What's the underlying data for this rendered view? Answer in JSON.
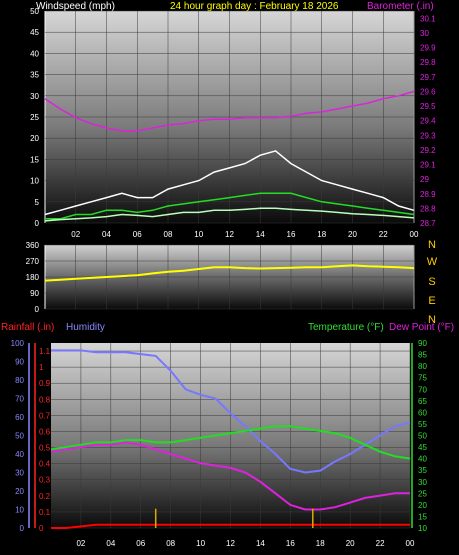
{
  "page": {
    "title": "24 hour graph day : February 18 2026",
    "title_color": "#ffff00"
  },
  "chart_data": [
    {
      "id": "wind",
      "type": "line",
      "title": "24 hour graph day : February 18 2026",
      "ylabel": "Windspeed (mph)",
      "y2label": "Barometer (.in)",
      "x_ticks": [
        "02",
        "04",
        "06",
        "08",
        "10",
        "12",
        "14",
        "16",
        "18",
        "20",
        "22",
        "00"
      ],
      "ylim": [
        0,
        50
      ],
      "y_ticks": [
        0,
        5,
        10,
        15,
        20,
        25,
        30,
        35,
        40,
        45,
        50
      ],
      "y2lim": [
        28.7,
        30.15
      ],
      "y2_ticks": [
        "28.7",
        "28.8",
        "28.9",
        "29",
        "29.1",
        "29.2",
        "29.3",
        "29.4",
        "29.5",
        "29.6",
        "29.7",
        "29.8",
        "29.9",
        "30",
        "30.1"
      ],
      "grid": true,
      "series": [
        {
          "name": "Windspeed (mph)",
          "axis": "left",
          "color": "#ffffff",
          "x": [
            0,
            1,
            2,
            3,
            4,
            5,
            6,
            7,
            8,
            9,
            10,
            11,
            12,
            13,
            14,
            15,
            16,
            17,
            18,
            19,
            20,
            21,
            22,
            23,
            24
          ],
          "values": [
            2,
            3,
            4,
            5,
            6,
            7,
            6,
            6,
            8,
            9,
            10,
            12,
            13,
            14,
            16,
            17,
            14,
            12,
            10,
            9,
            8,
            7,
            6,
            4,
            3
          ]
        },
        {
          "name": "",
          "axis": "left",
          "color": "#22dd22",
          "x": [
            0,
            1,
            2,
            3,
            4,
            5,
            6,
            7,
            8,
            9,
            10,
            11,
            12,
            13,
            14,
            15,
            16,
            17,
            18,
            19,
            20,
            21,
            22,
            23,
            24
          ],
          "values": [
            1,
            1,
            2,
            2,
            3,
            3,
            2.5,
            3,
            4,
            4.5,
            5,
            5.5,
            6,
            6.5,
            7,
            7,
            7,
            6,
            5,
            4.5,
            4,
            3.5,
            3,
            2.5,
            2
          ]
        },
        {
          "name": "",
          "axis": "left",
          "color": "#bbffbb",
          "x": [
            0,
            1,
            2,
            3,
            4,
            5,
            6,
            7,
            8,
            9,
            10,
            11,
            12,
            13,
            14,
            15,
            16,
            17,
            18,
            19,
            20,
            21,
            22,
            23,
            24
          ],
          "values": [
            0.5,
            0.8,
            1,
            1.2,
            1.5,
            2,
            1.8,
            1.5,
            2,
            2.5,
            2.5,
            3,
            3,
            3.2,
            3.5,
            3.5,
            3.2,
            3,
            2.8,
            2.5,
            2.2,
            2,
            1.8,
            1.5,
            1.2
          ]
        },
        {
          "name": "Barometer (.in)",
          "axis": "right",
          "color": "#dd22dd",
          "x": [
            0,
            1,
            2,
            3,
            4,
            5,
            6,
            7,
            8,
            9,
            10,
            11,
            12,
            13,
            14,
            15,
            16,
            17,
            18,
            19,
            20,
            21,
            22,
            23,
            24
          ],
          "values": [
            29.55,
            29.48,
            29.42,
            29.38,
            29.35,
            29.33,
            29.33,
            29.35,
            29.37,
            29.38,
            29.4,
            29.41,
            29.41,
            29.42,
            29.42,
            29.42,
            29.43,
            29.45,
            29.46,
            29.48,
            29.5,
            29.52,
            29.55,
            29.57,
            29.6
          ]
        }
      ]
    },
    {
      "id": "direction",
      "type": "line",
      "title": "",
      "ylim": [
        0,
        360
      ],
      "y_ticks": [
        0,
        90,
        180,
        270,
        360
      ],
      "compass_labels": [
        "N",
        "W",
        "S",
        "E",
        "N"
      ],
      "grid": true,
      "series": [
        {
          "name": "",
          "color": "#ffff00",
          "x": [
            0,
            1,
            2,
            3,
            4,
            5,
            6,
            7,
            8,
            9,
            10,
            11,
            12,
            13,
            14,
            15,
            16,
            17,
            18,
            19,
            20,
            21,
            22,
            23,
            24
          ],
          "values": [
            160,
            165,
            170,
            175,
            180,
            185,
            190,
            200,
            210,
            215,
            225,
            235,
            235,
            230,
            228,
            230,
            232,
            235,
            235,
            240,
            245,
            240,
            238,
            235,
            230
          ]
        }
      ]
    },
    {
      "id": "climate",
      "type": "line",
      "title": "",
      "x_ticks": [
        "02",
        "04",
        "06",
        "08",
        "10",
        "12",
        "14",
        "16",
        "18",
        "20",
        "22",
        "00"
      ],
      "labels": {
        "rainfall": "Rainfall (.in)",
        "humidity": "Humidity",
        "temperature": "Temperature (°F)",
        "dewpoint": "Dew Point (°F)"
      },
      "rain_ticks": [
        "0",
        "0.1",
        "0.2",
        "0.3",
        "0.4",
        "0.5",
        "0.6",
        "0.7",
        "0.8",
        "0.9",
        "1",
        "1.1"
      ],
      "humidity_ticks": [
        "0",
        "10",
        "20",
        "30",
        "40",
        "50",
        "60",
        "70",
        "80",
        "90",
        "100"
      ],
      "temp_ticks": [
        "10",
        "15",
        "20",
        "25",
        "30",
        "35",
        "40",
        "45",
        "50",
        "55",
        "60",
        "65",
        "70",
        "75",
        "80",
        "85",
        "90"
      ],
      "grid": true,
      "series": [
        {
          "name": "Humidity",
          "axis": "humidity",
          "color": "#7777ff",
          "x": [
            0,
            1,
            2,
            3,
            4,
            5,
            6,
            7,
            8,
            9,
            10,
            11,
            12,
            13,
            14,
            15,
            16,
            17,
            18,
            19,
            20,
            21,
            22,
            23,
            24
          ],
          "values": [
            96,
            96,
            96,
            95,
            95,
            95,
            94,
            93,
            85,
            75,
            72,
            70,
            62,
            55,
            47,
            40,
            32,
            30,
            31,
            36,
            40,
            45,
            50,
            55,
            57
          ]
        },
        {
          "name": "Temperature (°F)",
          "axis": "temp",
          "color": "#22dd22",
          "x": [
            0,
            1,
            2,
            3,
            4,
            5,
            6,
            7,
            8,
            9,
            10,
            11,
            12,
            13,
            14,
            15,
            16,
            17,
            18,
            19,
            20,
            21,
            22,
            23,
            24
          ],
          "values": [
            44,
            45,
            46,
            47,
            47,
            48,
            48,
            47,
            47,
            48,
            49,
            50,
            51,
            52,
            53,
            54,
            54,
            53,
            52,
            51,
            49,
            46,
            43,
            41,
            40
          ]
        },
        {
          "name": "Dew Point (°F)",
          "axis": "temp",
          "color": "#dd22dd",
          "x": [
            0,
            1,
            2,
            3,
            4,
            5,
            6,
            7,
            8,
            9,
            10,
            11,
            12,
            13,
            14,
            15,
            16,
            17,
            18,
            19,
            20,
            21,
            22,
            23,
            24
          ],
          "values": [
            43,
            44,
            45,
            46,
            46,
            47,
            46,
            44,
            42,
            40,
            38,
            37,
            36,
            34,
            30,
            25,
            20,
            18,
            18,
            19,
            21,
            23,
            24,
            25,
            25
          ]
        },
        {
          "name": "Rainfall (.in)",
          "axis": "rain",
          "color": "#ff0000",
          "x": [
            0,
            1,
            2,
            3,
            4,
            5,
            6,
            7,
            8,
            9,
            10,
            11,
            12,
            13,
            14,
            15,
            16,
            17,
            18,
            19,
            20,
            21,
            22,
            23,
            24
          ],
          "values": [
            0,
            0,
            0.01,
            0.02,
            0.02,
            0.02,
            0.02,
            0.02,
            0.02,
            0.02,
            0.02,
            0.02,
            0.02,
            0.02,
            0.02,
            0.02,
            0.02,
            0.02,
            0.02,
            0.02,
            0.02,
            0.02,
            0.02,
            0.02,
            0.02
          ]
        },
        {
          "name": "",
          "axis": "rain",
          "color": "#ddaa00",
          "kind": "bar",
          "x": [
            7,
            17.5
          ],
          "values": [
            0.12,
            0.12
          ]
        }
      ]
    }
  ],
  "colors": {
    "wind_ylabel": "#ffffff",
    "baro": "#dd22dd",
    "rain": "#ff0000",
    "humidity": "#7777ff",
    "temp": "#22dd22",
    "dew": "#dd22dd",
    "compass": "#ffcc00",
    "axis_rain": "#ff2222",
    "axis_hum": "#8888ff",
    "axis_temp": "#33dd33"
  }
}
